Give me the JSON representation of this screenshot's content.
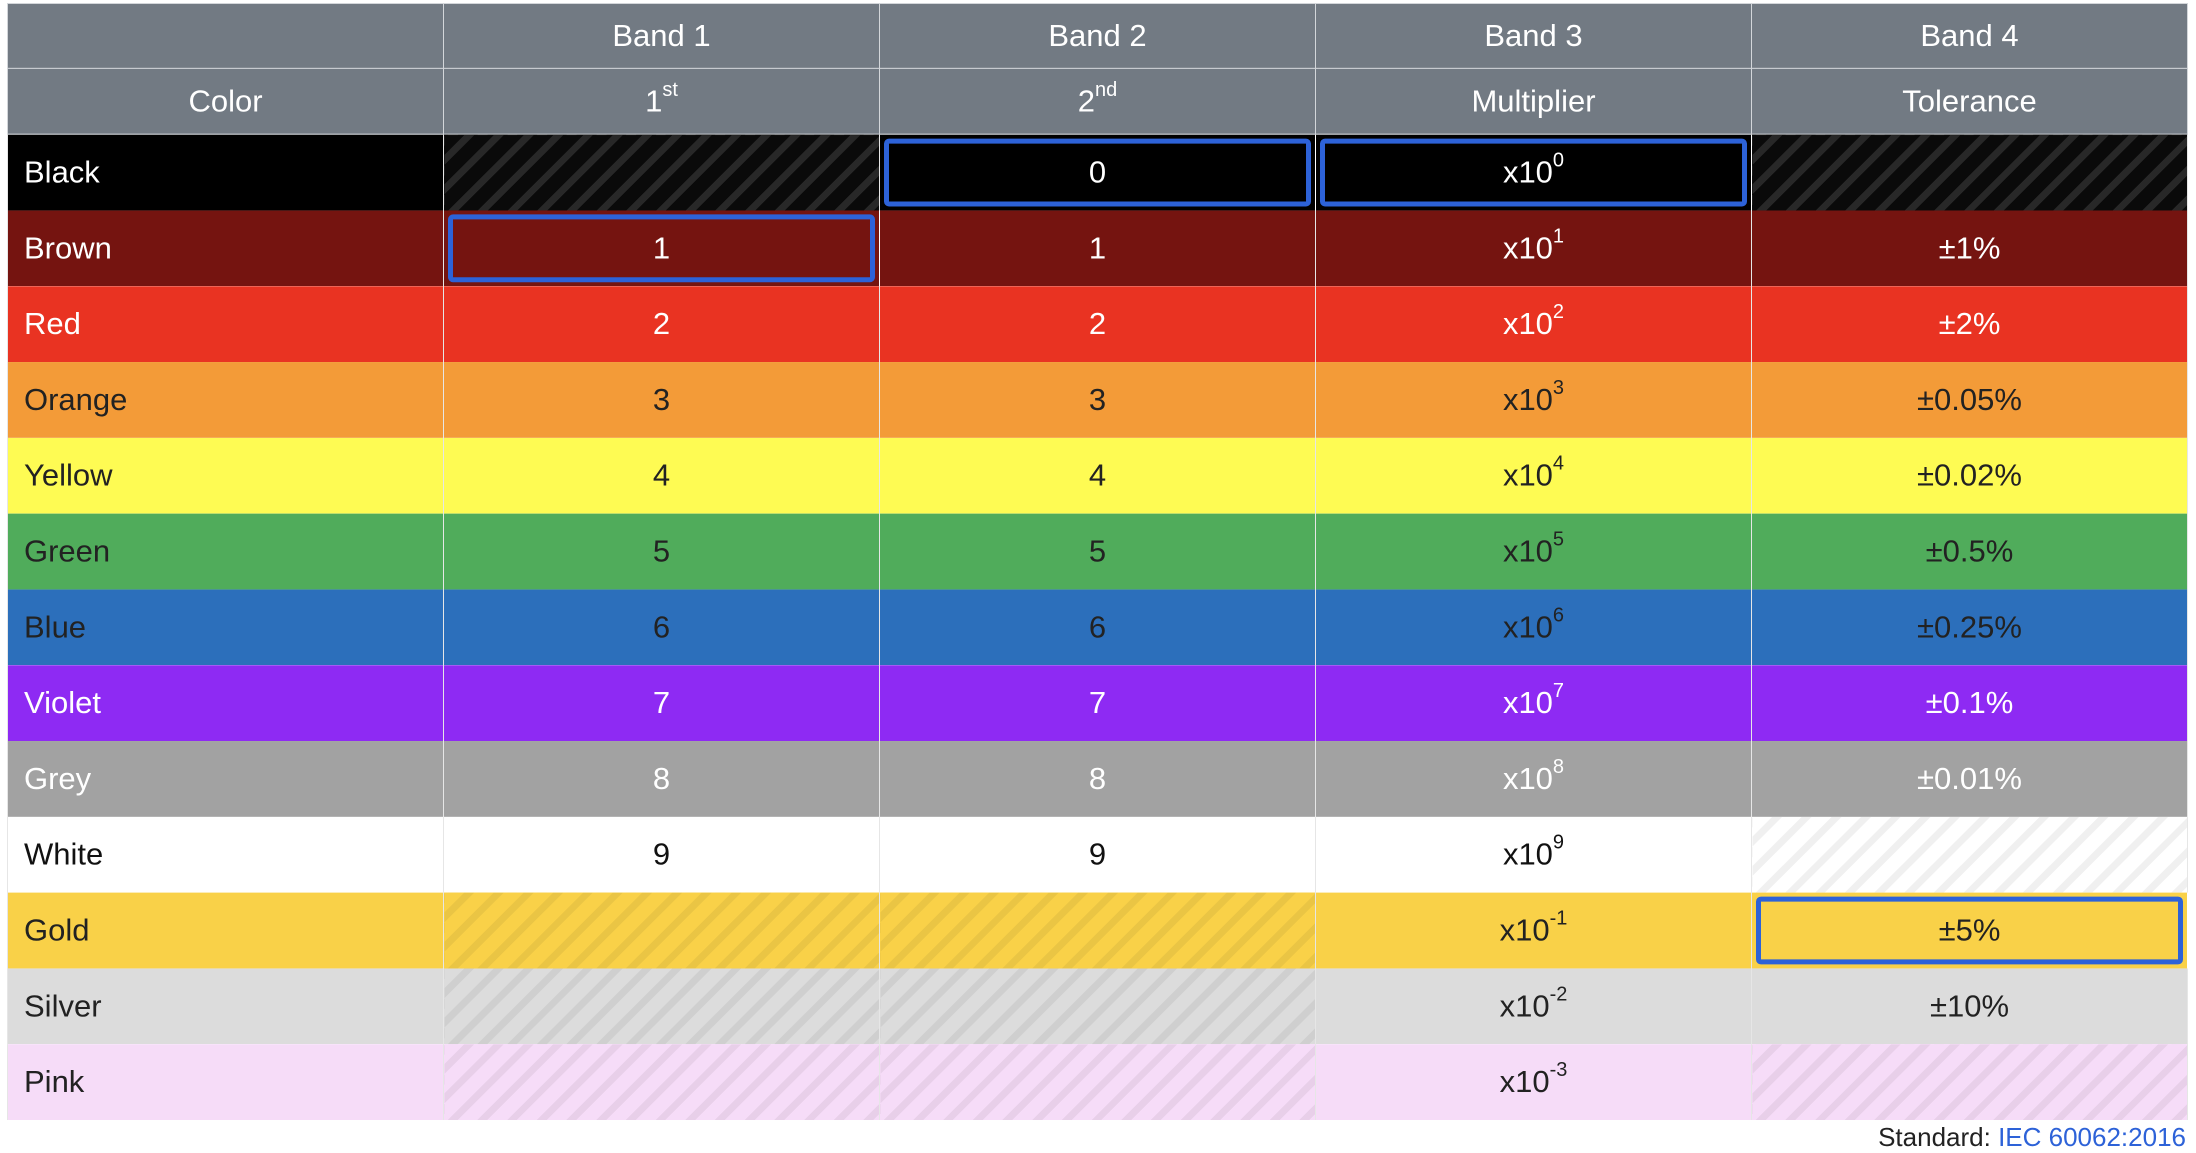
{
  "header": {
    "row1": [
      "",
      "Band 1",
      "Band 2",
      "Band 3",
      "Band 4"
    ],
    "row2": [
      {
        "text": "Color",
        "sup": ""
      },
      {
        "text": "1",
        "sup": "st"
      },
      {
        "text": "2",
        "sup": "nd"
      },
      {
        "text": "Multiplier",
        "sup": ""
      },
      {
        "text": "Tolerance",
        "sup": ""
      }
    ]
  },
  "rows": [
    {
      "name": "Black",
      "bg": "#000000",
      "fg": "#ffffff",
      "band1": null,
      "band2": "0",
      "mult_exp": "0",
      "tol": null,
      "selected": [
        "band2",
        "band3"
      ]
    },
    {
      "name": "Brown",
      "bg": "#751410",
      "fg": "#ffffff",
      "band1": "1",
      "band2": "1",
      "mult_exp": "1",
      "tol": "±1%",
      "selected": [
        "band1"
      ]
    },
    {
      "name": "Red",
      "bg": "#e93322",
      "fg": "#ffffff",
      "band1": "2",
      "band2": "2",
      "mult_exp": "2",
      "tol": "±2%",
      "selected": []
    },
    {
      "name": "Orange",
      "bg": "#f39b38",
      "fg": "#222222",
      "band1": "3",
      "band2": "3",
      "mult_exp": "3",
      "tol": "±0.05%",
      "selected": []
    },
    {
      "name": "Yellow",
      "bg": "#fefb53",
      "fg": "#222222",
      "band1": "4",
      "band2": "4",
      "mult_exp": "4",
      "tol": "±0.02%",
      "selected": []
    },
    {
      "name": "Green",
      "bg": "#50ac5b",
      "fg": "#222222",
      "band1": "5",
      "band2": "5",
      "mult_exp": "5",
      "tol": "±0.5%",
      "selected": []
    },
    {
      "name": "Blue",
      "bg": "#2c6fbb",
      "fg": "#222222",
      "band1": "6",
      "band2": "6",
      "mult_exp": "6",
      "tol": "±0.25%",
      "selected": []
    },
    {
      "name": "Violet",
      "bg": "#8e2af3",
      "fg": "#ffffff",
      "band1": "7",
      "band2": "7",
      "mult_exp": "7",
      "tol": "±0.1%",
      "selected": []
    },
    {
      "name": "Grey",
      "bg": "#a2a2a2",
      "fg": "#ffffff",
      "band1": "8",
      "band2": "8",
      "mult_exp": "8",
      "tol": "±0.01%",
      "selected": []
    },
    {
      "name": "White",
      "bg": "#ffffff",
      "fg": "#111111",
      "band1": "9",
      "band2": "9",
      "mult_exp": "9",
      "tol": null,
      "selected": []
    },
    {
      "name": "Gold",
      "bg": "#f9d148",
      "fg": "#222222",
      "band1": null,
      "band2": null,
      "mult_exp": "-1",
      "tol": "±5%",
      "selected": [
        "band4"
      ]
    },
    {
      "name": "Silver",
      "bg": "#dcdcdc",
      "fg": "#222222",
      "band1": null,
      "band2": null,
      "mult_exp": "-2",
      "tol": "±10%",
      "selected": []
    },
    {
      "name": "Pink",
      "bg": "#f6dcf8",
      "fg": "#222222",
      "band1": null,
      "band2": null,
      "mult_exp": "-3",
      "tol": null,
      "selected": []
    }
  ],
  "multiplier_base": "x10",
  "selection_color": "#2d62d8",
  "footer": {
    "label": "Standard: ",
    "link": "IEC 60062:2016"
  }
}
